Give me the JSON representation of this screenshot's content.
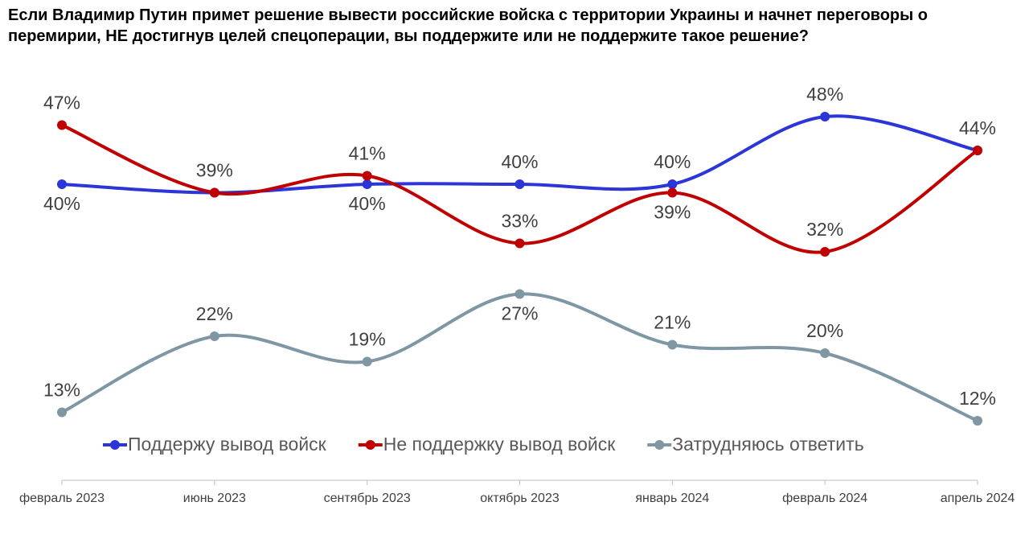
{
  "chart_data": {
    "type": "line",
    "title": "Если Владимир Путин примет решение вывести российские войска с территории Украины и начнет переговоры о перемирии, НЕ достигнув целей спецоперации, вы поддержите или не поддержите такое решение?",
    "categories": [
      "февраль 2023",
      "июнь 2023",
      "сентябрь 2023",
      "октябрь 2023",
      "январь 2024",
      "февраль 2024",
      "апрель 2024"
    ],
    "series": [
      {
        "name": "Поддержу вывод войск",
        "color": "#2b35d8",
        "values": [
          40,
          39,
          40,
          40,
          40,
          48,
          44
        ],
        "value_labels": [
          "40%",
          null,
          "40%",
          "40%",
          "40%",
          "48%",
          null
        ]
      },
      {
        "name": "Не поддержку вывод войск",
        "color": "#c00000",
        "values": [
          47,
          39,
          41,
          33,
          39,
          32,
          44
        ],
        "value_labels": [
          "47%",
          "39%",
          "41%",
          "33%",
          "39%",
          "32%",
          "44%"
        ]
      },
      {
        "name": "Затрудняюсь ответить",
        "color": "#7f96a3",
        "values": [
          13,
          22,
          19,
          27,
          21,
          20,
          12
        ],
        "value_labels": [
          "13%",
          "22%",
          "19%",
          "27%",
          "21%",
          "20%",
          "12%"
        ]
      }
    ]
  }
}
